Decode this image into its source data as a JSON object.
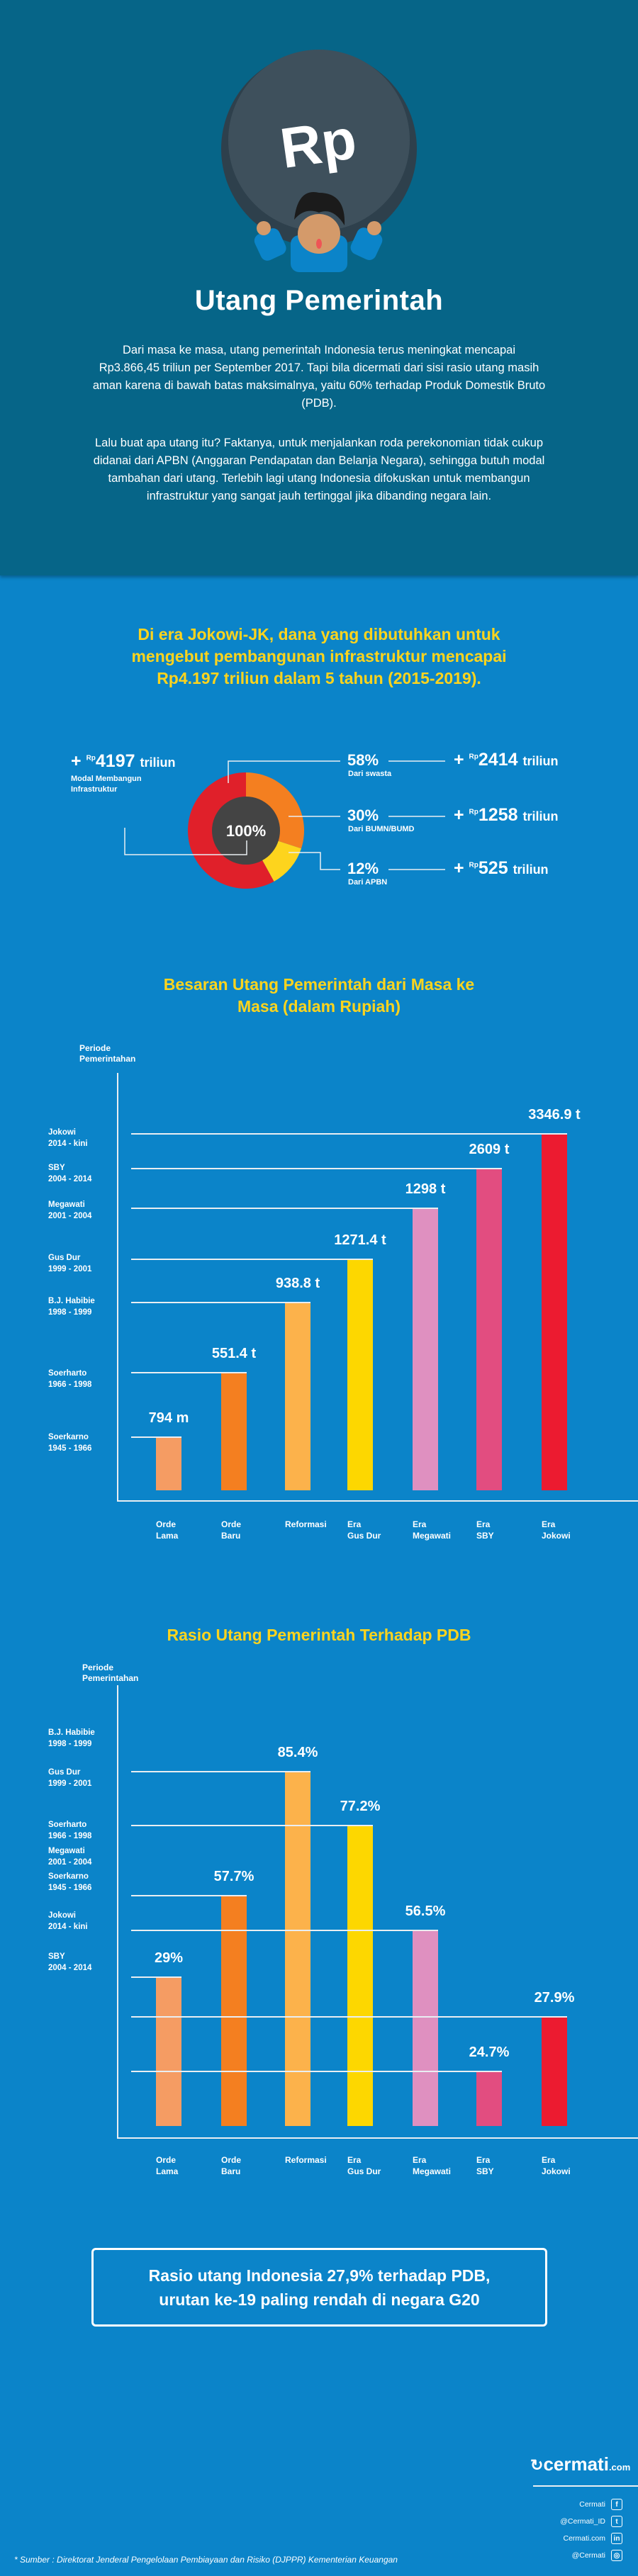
{
  "header": {
    "coin_label": "Rp",
    "title": "Utang Pemerintah",
    "intro_paragraph_1": "Dari masa ke masa, utang pemerintah Indonesia terus meningkat mencapai Rp3.866,45 triliun per September 2017. Tapi bila dicermati dari sisi rasio utang masih aman karena di bawah batas maksimalnya, yaitu 60% terhadap Produk Domestik Bruto (PDB).",
    "intro_paragraph_2": "Lalu buat apa utang itu? Faktanya, untuk menjalankan roda perekonomian tidak cukup didanai dari APBN (Anggaran Pendapatan dan Belanja Negara), sehingga butuh modal tambahan dari utang. Terlebih lagi utang Indonesia difokuskan untuk membangun infrastruktur yang sangat jauh tertinggal jika dibanding negara lain."
  },
  "highlight": "Di era Jokowi-JK, dana yang dibutuhkan untuk mengebut pembangunan infrastruktur mencapai Rp4.197 triliun dalam 5 tahun (2015-2019).",
  "colors": {
    "header_bg": "#066588",
    "page_bg": "#0b84c9",
    "accent_yellow": "#fdd41d",
    "donut_center": "#444444"
  },
  "chart_data": [
    {
      "type": "pie",
      "variant": "donut",
      "center_label": "100%",
      "total": {
        "plus": "+",
        "currency": "Rp",
        "value": "4197",
        "unit": "triliun",
        "label": "Modal Membangun Infrastruktur"
      },
      "slices": [
        {
          "name": "Dari swasta",
          "percent": 58,
          "percent_label": "58%",
          "amount": "2414",
          "unit": "triliun",
          "currency": "Rp",
          "color": "#e0202a"
        },
        {
          "name": "Dari BUMN/BUMD",
          "percent": 30,
          "percent_label": "30%",
          "amount": "1258",
          "unit": "triliun",
          "currency": "Rp",
          "color": "#f47f20"
        },
        {
          "name": "Dari APBN",
          "percent": 12,
          "percent_label": "12%",
          "amount": "525",
          "unit": "triliun",
          "currency": "Rp",
          "color": "#fdd41d"
        }
      ]
    },
    {
      "type": "bar",
      "title": "Besaran Utang Pemerintah dari Masa ke Masa (dalam Rupiah)",
      "ylabel": "Periode Pemerintahan",
      "xlabel": "",
      "unit": "triliun Rupiah",
      "categories": [
        "Orde Lama",
        "Orde Baru",
        "Reformasi",
        "Era Gus Dur",
        "Era Megawati",
        "Era SBY",
        "Era Jokowi"
      ],
      "category_lines": [
        [
          "Orde",
          "Lama"
        ],
        [
          "Orde",
          "Baru"
        ],
        [
          "Reformasi"
        ],
        [
          "Era",
          "Gus Dur"
        ],
        [
          "Era",
          "Megawati"
        ],
        [
          "Era",
          "SBY"
        ],
        [
          "Era",
          "Jokowi"
        ]
      ],
      "values": [
        0.794,
        551.4,
        938.8,
        1271.4,
        1298,
        2609,
        3346.9
      ],
      "value_labels": [
        "794 m",
        "551.4 t",
        "938.8 t",
        "1271.4 t",
        "1298 t",
        "2609 t",
        "3346.9 t"
      ],
      "colors": [
        "#f59c63",
        "#f47f20",
        "#fcb24b",
        "#fdd700",
        "#df90c0",
        "#e24d80",
        "#ec1b30"
      ],
      "period_labels": [
        [
          "Soerkarno",
          "1945 - 1966"
        ],
        [
          "Soerharto",
          "1966 - 1998"
        ],
        [
          "B.J. Habibie",
          "1998 - 1999"
        ],
        [
          "Gus Dur",
          "1999 - 2001"
        ],
        [
          "Megawati",
          "2001 - 2004"
        ],
        [
          "SBY",
          "2004 - 2014"
        ],
        [
          "Jokowi",
          "2014 - kini"
        ]
      ],
      "grid": false
    },
    {
      "type": "bar",
      "title": "Rasio Utang Pemerintah Terhadap PDB",
      "ylabel": "Periode Pemerintahan",
      "xlabel": "",
      "unit": "% of PDB",
      "categories": [
        "Orde Lama",
        "Orde Baru",
        "Reformasi",
        "Era Gus Dur",
        "Era Megawati",
        "Era SBY",
        "Era Jokowi"
      ],
      "category_lines": [
        [
          "Orde",
          "Lama"
        ],
        [
          "Orde",
          "Baru"
        ],
        [
          "Reformasi"
        ],
        [
          "Era",
          "Gus Dur"
        ],
        [
          "Era",
          "Megawati"
        ],
        [
          "Era",
          "SBY"
        ],
        [
          "Era",
          "Jokowi"
        ]
      ],
      "values": [
        29,
        57.7,
        85.4,
        77.2,
        56.5,
        24.7,
        27.9
      ],
      "value_labels": [
        "29%",
        "57.7%",
        "85.4%",
        "77.2%",
        "56.5%",
        "24.7%",
        "27.9%"
      ],
      "colors": [
        "#f59c63",
        "#f47f20",
        "#fcb24b",
        "#fdd700",
        "#df90c0",
        "#e24d80",
        "#ec1b30"
      ],
      "period_labels": [
        [
          "Soerkarno",
          "1945 - 1966"
        ],
        [
          "Soerharto",
          "1966 - 1998"
        ],
        [
          "B.J. Habibie",
          "1998 - 1999"
        ],
        [
          "Gus Dur",
          "1999 - 2001"
        ],
        [
          "Megawati",
          "2001 - 2004"
        ],
        [
          "SBY",
          "2004 - 2014"
        ],
        [
          "Jokowi",
          "2014 - kini"
        ]
      ],
      "grid": false
    }
  ],
  "callout": "Rasio utang Indonesia 27,9% terhadap PDB, urutan ke-19 paling rendah di negara G20",
  "footer": {
    "brand": "cermati",
    "brand_suffix": ".com",
    "socials": [
      {
        "label": "Cermati",
        "icon": "facebook-icon",
        "glyph": "f"
      },
      {
        "label": "@Cermati_ID",
        "icon": "twitter-icon",
        "glyph": "t"
      },
      {
        "label": "Cermati.com",
        "icon": "linkedin-icon",
        "glyph": "in"
      },
      {
        "label": "@Cermati",
        "icon": "instagram-icon",
        "glyph": "◎"
      }
    ],
    "source": "* Sumber :  Direktorat Jenderal Pengelolaan Pembiayaan dan Risiko (DJPPR) Kementerian Keuangan"
  }
}
